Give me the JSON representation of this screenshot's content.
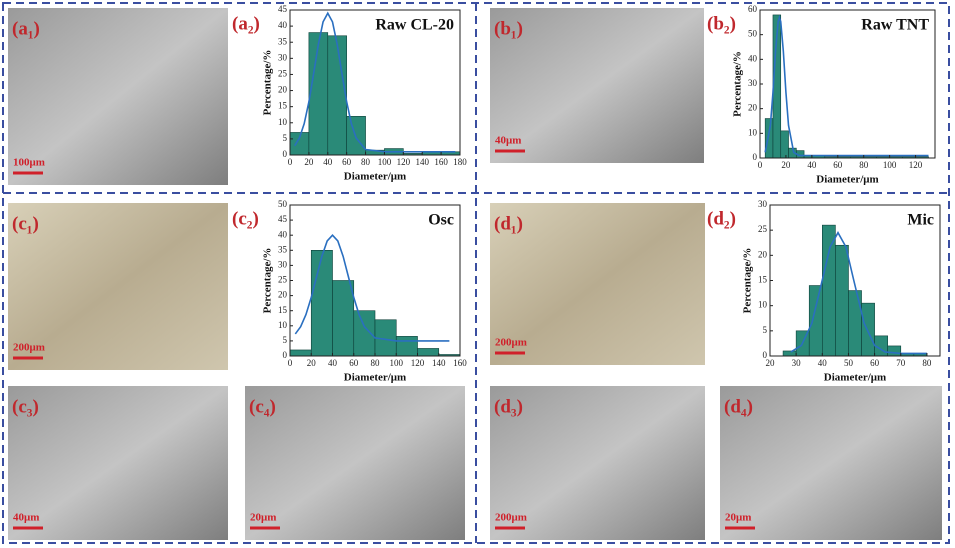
{
  "chart_data": [
    {
      "type": "histogram",
      "panel_label": "(a₂)",
      "title": "Raw CL-20",
      "x_label": "Diameter/μm",
      "y_label": "Percentage/%",
      "bins": [
        0,
        20,
        40,
        60,
        80,
        100,
        120,
        140,
        160,
        180
      ],
      "values": [
        7,
        38,
        37,
        12,
        1.5,
        2,
        0.5,
        1,
        1
      ],
      "color": "#2a8a78",
      "line_color": "#2a6fc0",
      "fit": {
        "x": [
          5,
          10,
          15,
          20,
          25,
          30,
          35,
          40,
          45,
          50,
          55,
          60,
          65,
          70,
          80,
          100,
          140,
          175
        ],
        "values": [
          2.9,
          5.3,
          9.7,
          16.5,
          25.2,
          34.3,
          41.3,
          44,
          41.3,
          34.3,
          25.2,
          16.5,
          9.7,
          5.3,
          1.7,
          1,
          1,
          1
        ]
      },
      "xlim": [
        0,
        180
      ],
      "xticks": [
        0,
        20,
        40,
        60,
        80,
        100,
        120,
        140,
        160,
        180
      ],
      "ylim": [
        0,
        45
      ],
      "yticks": [
        0,
        5,
        10,
        15,
        20,
        25,
        30,
        35,
        40,
        45
      ],
      "grid": false
    },
    {
      "type": "histogram",
      "panel_label": "(b₂)",
      "title": "Raw TNT",
      "x_label": "Diameter/μm",
      "y_label": "Percentage/%",
      "bins": [
        4,
        10,
        16,
        22,
        28,
        34,
        40,
        50,
        60,
        70,
        80,
        90,
        100,
        110,
        120,
        130
      ],
      "values": [
        16,
        58,
        11,
        4,
        3,
        1,
        1,
        0.5,
        0.5,
        0.5,
        0.5,
        0.5,
        0.5,
        0.5,
        0.5
      ],
      "color": "#2a8a78",
      "line_color": "#2a6fc0",
      "fit": {
        "x": [
          4,
          8,
          10,
          12,
          14,
          15,
          16,
          18,
          20,
          22,
          26,
          30,
          60,
          130
        ],
        "values": [
          2.3,
          13.2,
          26.6,
          43.3,
          55.3,
          57,
          55.3,
          43.3,
          26.6,
          13.2,
          2.3,
          1.05,
          1,
          1
        ]
      },
      "xlim": [
        0,
        135
      ],
      "xticks": [
        0,
        20,
        40,
        60,
        80,
        100,
        120
      ],
      "ylim": [
        0,
        60
      ],
      "yticks": [
        0,
        10,
        20,
        30,
        40,
        50,
        60
      ],
      "grid": false
    },
    {
      "type": "histogram",
      "panel_label": "(c₂)",
      "title": "Osc",
      "x_label": "Diameter/μm",
      "y_label": "Percentage/%",
      "bins": [
        0,
        20,
        40,
        60,
        80,
        100,
        120,
        140,
        160
      ],
      "values": [
        2,
        35,
        25,
        15,
        12,
        6.5,
        2.5,
        0.5
      ],
      "color": "#2a8a78",
      "line_color": "#2a6fc0",
      "fit": {
        "x": [
          5,
          10,
          15,
          20,
          25,
          30,
          35,
          40,
          45,
          50,
          55,
          60,
          65,
          70,
          80,
          100,
          150
        ],
        "values": [
          7.3,
          9.7,
          13.7,
          19.4,
          26.2,
          33,
          38.1,
          40,
          38.1,
          33,
          26.2,
          19.4,
          13.7,
          9.7,
          6,
          5,
          5
        ]
      },
      "xlim": [
        0,
        160
      ],
      "xticks": [
        0,
        20,
        40,
        60,
        80,
        100,
        120,
        140,
        160
      ],
      "ylim": [
        0,
        50
      ],
      "yticks": [
        0,
        5,
        10,
        15,
        20,
        25,
        30,
        35,
        40,
        45,
        50
      ],
      "grid": false
    },
    {
      "type": "histogram",
      "panel_label": "(d₂)",
      "title": "Mic",
      "x_label": "Diameter/μm",
      "y_label": "Percentage/%",
      "bins": [
        25,
        30,
        35,
        40,
        45,
        50,
        55,
        60,
        65,
        70,
        75,
        80
      ],
      "values": [
        1,
        5,
        14,
        26,
        22,
        13,
        10.5,
        4,
        2,
        0.5,
        0.5
      ],
      "color": "#2a8a78",
      "line_color": "#2a6fc0",
      "fit": {
        "x": [
          28,
          32,
          36,
          40,
          43,
          46,
          49,
          52,
          56,
          60,
          64,
          70,
          80
        ],
        "values": [
          0.8,
          2.1,
          6.5,
          15.1,
          21.7,
          24.5,
          21.7,
          15.1,
          6.5,
          2.1,
          0.8,
          0.5,
          0.5
        ]
      },
      "xlim": [
        20,
        85
      ],
      "xticks": [
        20,
        30,
        40,
        50,
        60,
        70,
        80
      ],
      "ylim": [
        0,
        30
      ],
      "yticks": [
        0,
        5,
        10,
        15,
        20,
        25,
        30
      ],
      "grid": false
    }
  ],
  "images": [
    {
      "label": "(a₁)",
      "scale_bar": "100μm"
    },
    {
      "label": "(b₁)",
      "scale_bar": "40μm"
    },
    {
      "label": "(c₁)",
      "scale_bar": "200μm"
    },
    {
      "label": "(d₁)",
      "scale_bar": "200μm"
    },
    {
      "label": "(c₃)",
      "scale_bar": "40μm"
    },
    {
      "label": "(c₄)",
      "scale_bar": "20μm"
    },
    {
      "label": "(d₃)",
      "scale_bar": "200μm"
    },
    {
      "label": "(d₄)",
      "scale_bar": "20μm"
    }
  ]
}
